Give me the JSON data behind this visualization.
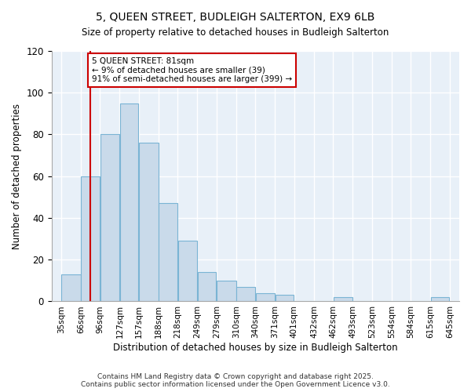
{
  "title": "5, QUEEN STREET, BUDLEIGH SALTERTON, EX9 6LB",
  "subtitle": "Size of property relative to detached houses in Budleigh Salterton",
  "xlabel": "Distribution of detached houses by size in Budleigh Salterton",
  "ylabel": "Number of detached properties",
  "bin_edges": [
    35,
    66,
    96,
    127,
    157,
    188,
    218,
    249,
    279,
    310,
    340,
    371,
    401,
    432,
    462,
    493,
    523,
    554,
    584,
    615,
    645
  ],
  "bar_heights": [
    13,
    60,
    80,
    95,
    76,
    47,
    29,
    14,
    10,
    7,
    4,
    3,
    0,
    0,
    2,
    0,
    0,
    0,
    0,
    2
  ],
  "bar_color": "#c9daea",
  "bar_edge_color": "#7ab4d4",
  "property_size": 81,
  "red_line_color": "#cc0000",
  "annotation_text": "5 QUEEN STREET: 81sqm\n← 9% of detached houses are smaller (39)\n91% of semi-detached houses are larger (399) →",
  "annotation_box_color": "#ffffff",
  "annotation_box_edge": "#cc0000",
  "ylim": [
    0,
    120
  ],
  "tick_labels": [
    "35sqm",
    "66sqm",
    "96sqm",
    "127sqm",
    "157sqm",
    "188sqm",
    "218sqm",
    "249sqm",
    "279sqm",
    "310sqm",
    "340sqm",
    "371sqm",
    "401sqm",
    "432sqm",
    "462sqm",
    "493sqm",
    "523sqm",
    "554sqm",
    "584sqm",
    "615sqm",
    "645sqm"
  ],
  "bg_color": "#e8f0f8",
  "grid_color": "#ffffff",
  "footer_line1": "Contains HM Land Registry data © Crown copyright and database right 2025.",
  "footer_line2": "Contains public sector information licensed under the Open Government Licence v3.0."
}
